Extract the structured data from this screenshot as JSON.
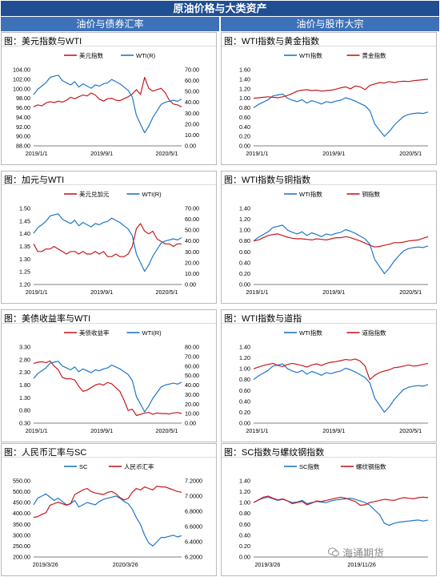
{
  "header": {
    "title": "原油价格与大类资产",
    "left_section": "油价与债券汇率",
    "right_section": "油价与股市大宗"
  },
  "watermark": "海通期货",
  "colors": {
    "blue": "#1f77c8",
    "red": "#c8191e",
    "header_dark": "#1f4e92",
    "header_light": "#3e72b8"
  },
  "chart_data": [
    {
      "id": "usd_wti",
      "type": "line",
      "title": "图：美元指数与WTI",
      "x_ticks": [
        "2019/1/1",
        "2019/9/1",
        "2020/5/1"
      ],
      "left_axis": {
        "ticks": [
          "104.00",
          "102.00",
          "100.00",
          "98.00",
          "96.00",
          "94.00",
          "92.00",
          "90.00",
          "88.00"
        ],
        "range": [
          88,
          104
        ]
      },
      "right_axis": {
        "ticks": [
          "70.00",
          "60.00",
          "50.00",
          "40.00",
          "30.00",
          "20.00",
          "10.00",
          "0.00"
        ],
        "range": [
          0,
          70
        ]
      },
      "series": [
        {
          "name": "美元指数",
          "color": "red",
          "axis": "left",
          "values": [
            96.2,
            96.6,
            96.4,
            97.0,
            97.3,
            97.1,
            97.4,
            97.2,
            97.6,
            98.2,
            97.9,
            98.3,
            98.7,
            98.5,
            99.1,
            98.7,
            97.8,
            97.4,
            97.9,
            98.0,
            97.6,
            97.5,
            97.9,
            98.3,
            98.9,
            99.8,
            98.8,
            102.4,
            100.1,
            99.5,
            99.8,
            100.1,
            99.2,
            97.6,
            96.8,
            96.6,
            96.2
          ]
        },
        {
          "name": "WTI(R)",
          "color": "blue",
          "axis": "right",
          "values": [
            47,
            52,
            55,
            58,
            63,
            64,
            65,
            60,
            58,
            56,
            59,
            54,
            57,
            55,
            53,
            56,
            55,
            57,
            58,
            61,
            59,
            57,
            54,
            51,
            45,
            28,
            20,
            12,
            18,
            26,
            32,
            38,
            40,
            41,
            42,
            41,
            43
          ]
        }
      ]
    },
    {
      "id": "wti_gold",
      "type": "line",
      "title": "图：WTI指数与黄金指数",
      "x_ticks": [
        "2019/1/1",
        "2019/9/1",
        "2020/5/1"
      ],
      "left_axis": {
        "ticks": [
          "1.60",
          "1.40",
          "1.20",
          "1.00",
          "0.80",
          "0.60",
          "0.40",
          "0.20",
          "0.00"
        ],
        "range": [
          0,
          1.6
        ]
      },
      "series": [
        {
          "name": "WTI指数",
          "color": "blue",
          "values": [
            0.8,
            0.87,
            0.92,
            0.97,
            1.05,
            1.07,
            1.09,
            1.0,
            0.96,
            0.93,
            0.97,
            0.9,
            0.95,
            0.92,
            0.88,
            0.93,
            0.91,
            0.94,
            0.96,
            1.01,
            0.98,
            0.94,
            0.89,
            0.84,
            0.74,
            0.46,
            0.33,
            0.2,
            0.3,
            0.43,
            0.53,
            0.62,
            0.66,
            0.68,
            0.69,
            0.68,
            0.71
          ]
        },
        {
          "name": "黄金指数",
          "color": "red",
          "values": [
            1.0,
            1.01,
            1.02,
            1.03,
            1.02,
            1.01,
            1.03,
            1.06,
            1.1,
            1.15,
            1.17,
            1.18,
            1.16,
            1.17,
            1.15,
            1.16,
            1.17,
            1.19,
            1.22,
            1.24,
            1.2,
            1.26,
            1.24,
            1.18,
            1.27,
            1.3,
            1.33,
            1.32,
            1.35,
            1.33,
            1.35,
            1.36,
            1.35,
            1.37,
            1.38,
            1.39,
            1.4
          ]
        }
      ]
    },
    {
      "id": "cad_wti",
      "type": "line",
      "title": "图：加元与WTI",
      "x_ticks": [
        "2019/1/1",
        "2019/9/1",
        "2020/5/1"
      ],
      "left_axis": {
        "ticks": [
          "1.50",
          "1.45",
          "1.40",
          "1.35",
          "1.30",
          "1.25",
          "1.20"
        ],
        "range": [
          1.2,
          1.5
        ]
      },
      "right_axis": {
        "ticks": [
          "70.00",
          "60.00",
          "50.00",
          "40.00",
          "30.00",
          "20.00",
          "10.00",
          "0.00"
        ],
        "range": [
          0,
          70
        ]
      },
      "series": [
        {
          "name": "美元兑加元",
          "color": "red",
          "axis": "left",
          "values": [
            1.36,
            1.33,
            1.33,
            1.34,
            1.34,
            1.35,
            1.34,
            1.33,
            1.32,
            1.33,
            1.33,
            1.32,
            1.33,
            1.32,
            1.32,
            1.33,
            1.32,
            1.33,
            1.31,
            1.31,
            1.32,
            1.31,
            1.31,
            1.32,
            1.35,
            1.42,
            1.44,
            1.41,
            1.4,
            1.41,
            1.38,
            1.37,
            1.36,
            1.36,
            1.35,
            1.36,
            1.36
          ]
        },
        {
          "name": "WTI(R)",
          "color": "blue",
          "axis": "right",
          "values": [
            47,
            52,
            55,
            58,
            63,
            64,
            65,
            60,
            58,
            56,
            59,
            54,
            57,
            55,
            53,
            56,
            55,
            57,
            58,
            61,
            59,
            57,
            54,
            51,
            45,
            28,
            20,
            12,
            18,
            26,
            32,
            38,
            40,
            41,
            42,
            41,
            43
          ]
        }
      ]
    },
    {
      "id": "wti_copper",
      "type": "line",
      "title": "图：WTI指数与铜指数",
      "x_ticks": [
        "2019/1/1",
        "2019/9/1",
        "2020/5/1"
      ],
      "left_axis": {
        "ticks": [
          "1.40",
          "1.20",
          "1.00",
          "0.80",
          "0.60",
          "0.40",
          "0.20",
          "0.00"
        ],
        "range": [
          0,
          1.4
        ]
      },
      "series": [
        {
          "name": "WTI指数",
          "color": "blue",
          "values": [
            0.8,
            0.87,
            0.92,
            0.97,
            1.05,
            1.07,
            1.09,
            1.0,
            0.96,
            0.93,
            0.97,
            0.9,
            0.95,
            0.92,
            0.88,
            0.93,
            0.91,
            0.94,
            0.96,
            1.01,
            0.98,
            0.94,
            0.89,
            0.84,
            0.74,
            0.46,
            0.33,
            0.2,
            0.3,
            0.43,
            0.53,
            0.62,
            0.66,
            0.68,
            0.69,
            0.68,
            0.71
          ]
        },
        {
          "name": "铜指数",
          "color": "red",
          "values": [
            0.8,
            0.82,
            0.86,
            0.9,
            0.92,
            0.93,
            0.9,
            0.87,
            0.85,
            0.84,
            0.84,
            0.83,
            0.82,
            0.84,
            0.83,
            0.82,
            0.84,
            0.86,
            0.86,
            0.88,
            0.86,
            0.83,
            0.8,
            0.76,
            0.72,
            0.69,
            0.7,
            0.72,
            0.74,
            0.77,
            0.77,
            0.78,
            0.8,
            0.81,
            0.82,
            0.85,
            0.88
          ]
        }
      ]
    },
    {
      "id": "ust_wti",
      "type": "line",
      "title": "图：美债收益率与WTI",
      "x_ticks": [
        "2019/1/1",
        "2019/9/1",
        "2020/5/1"
      ],
      "left_axis": {
        "ticks": [
          "3.30",
          "2.80",
          "2.30",
          "1.80",
          "1.30",
          "0.80",
          "0.30"
        ],
        "range": [
          0.3,
          3.3
        ]
      },
      "right_axis": {
        "ticks": [
          "80.00",
          "70.00",
          "60.00",
          "50.00",
          "40.00",
          "30.00",
          "20.00",
          "10.00",
          "0.00"
        ],
        "range": [
          0,
          80
        ]
      },
      "series": [
        {
          "name": "美债收益率",
          "color": "red",
          "axis": "left",
          "values": [
            2.65,
            2.7,
            2.72,
            2.68,
            2.75,
            2.55,
            2.4,
            2.1,
            2.05,
            2.05,
            2.0,
            1.75,
            1.55,
            1.6,
            1.7,
            1.8,
            1.85,
            1.8,
            1.9,
            1.85,
            1.7,
            1.55,
            1.2,
            0.8,
            0.85,
            0.6,
            0.65,
            0.7,
            0.72,
            0.65,
            0.7,
            0.68,
            0.68,
            0.66,
            0.7,
            0.72,
            0.68
          ]
        },
        {
          "name": "WTI(R)",
          "color": "blue",
          "axis": "right",
          "values": [
            47,
            52,
            55,
            58,
            63,
            64,
            65,
            60,
            58,
            56,
            59,
            54,
            57,
            55,
            53,
            56,
            55,
            57,
            58,
            61,
            59,
            57,
            54,
            51,
            45,
            28,
            20,
            12,
            18,
            26,
            32,
            38,
            40,
            41,
            42,
            41,
            43
          ]
        }
      ]
    },
    {
      "id": "wti_dow",
      "type": "line",
      "title": "图：WTI指数与道指",
      "x_ticks": [
        "2019/1/1",
        "2019/9/1",
        "2020/5/1"
      ],
      "left_axis": {
        "ticks": [
          "1.40",
          "1.20",
          "1.00",
          "0.80",
          "0.60",
          "0.40",
          "0.20",
          "0.00"
        ],
        "range": [
          0,
          1.4
        ]
      },
      "series": [
        {
          "name": "WTI指数",
          "color": "blue",
          "values": [
            0.8,
            0.87,
            0.92,
            0.97,
            1.05,
            1.07,
            1.09,
            1.0,
            0.96,
            0.93,
            0.97,
            0.9,
            0.95,
            0.92,
            0.88,
            0.93,
            0.91,
            0.94,
            0.96,
            1.01,
            0.98,
            0.94,
            0.89,
            0.84,
            0.74,
            0.46,
            0.33,
            0.2,
            0.3,
            0.43,
            0.53,
            0.62,
            0.66,
            0.68,
            0.69,
            0.68,
            0.71
          ]
        },
        {
          "name": "道指指数",
          "color": "red",
          "values": [
            1.0,
            1.03,
            1.06,
            1.08,
            1.1,
            1.06,
            1.04,
            1.08,
            1.1,
            1.08,
            1.06,
            1.03,
            1.07,
            1.09,
            1.06,
            1.1,
            1.12,
            1.13,
            1.15,
            1.17,
            1.16,
            1.18,
            1.14,
            1.05,
            0.8,
            0.88,
            0.93,
            0.96,
            0.98,
            1.02,
            1.03,
            1.05,
            1.07,
            1.05,
            1.06,
            1.08,
            1.1
          ]
        }
      ]
    },
    {
      "id": "cny_sc",
      "type": "line",
      "title": "图：人民币汇率与SC",
      "x_ticks": [
        "2019/3/26",
        "2020/3/26"
      ],
      "left_axis": {
        "ticks": [
          "550.00",
          "500.00",
          "450.00",
          "400.00",
          "350.00",
          "300.00",
          "250.00",
          "200.00"
        ],
        "range": [
          200,
          550
        ]
      },
      "right_axis": {
        "ticks": [
          "7.2000",
          "7.0000",
          "6.8000",
          "6.6000",
          "6.4000",
          "6.2000"
        ],
        "range": [
          6.2,
          7.2
        ]
      },
      "series": [
        {
          "name": "SC",
          "color": "blue",
          "axis": "left",
          "values": [
            440,
            470,
            480,
            490,
            475,
            460,
            470,
            455,
            440,
            445,
            460,
            430,
            440,
            450,
            445,
            440,
            455,
            465,
            470,
            475,
            480,
            470,
            455,
            445,
            420,
            380,
            350,
            300,
            265,
            250,
            270,
            290,
            290,
            295,
            300,
            292,
            298
          ]
        },
        {
          "name": "人民币汇率",
          "color": "red",
          "axis": "right",
          "values": [
            6.72,
            6.73,
            6.76,
            6.78,
            6.88,
            6.9,
            6.92,
            6.9,
            6.88,
            6.9,
            7.02,
            7.05,
            7.08,
            7.1,
            7.06,
            7.04,
            7.03,
            7.02,
            7.05,
            7.06,
            7.03,
            6.98,
            6.95,
            6.97,
            7.05,
            7.1,
            7.08,
            7.12,
            7.1,
            7.08,
            7.13,
            7.12,
            7.12,
            7.1,
            7.08,
            7.06,
            7.05
          ]
        }
      ]
    },
    {
      "id": "sc_rebar",
      "type": "line",
      "title": "图：SC指数与螺纹钢指数",
      "x_ticks": [
        "2019/3/26",
        "2019/11/26"
      ],
      "left_axis": {
        "ticks": [
          "1.40",
          "1.20",
          "1.00",
          "0.80",
          "0.60",
          "0.40",
          "0.20",
          "0.00"
        ],
        "range": [
          0,
          1.4
        ]
      },
      "series": [
        {
          "name": "SC指数",
          "color": "blue",
          "values": [
            1.0,
            1.05,
            1.08,
            1.1,
            1.07,
            1.04,
            1.06,
            1.03,
            1.0,
            1.01,
            1.04,
            0.98,
            1.0,
            1.02,
            1.01,
            1.0,
            1.03,
            1.05,
            1.06,
            1.07,
            1.08,
            1.06,
            1.03,
            1.0,
            0.95,
            0.86,
            0.78,
            0.62,
            0.58,
            0.62,
            0.64,
            0.65,
            0.66,
            0.67,
            0.68,
            0.66,
            0.68
          ]
        },
        {
          "name": "螺纹钢指数",
          "color": "red",
          "values": [
            1.0,
            1.05,
            1.1,
            1.12,
            1.08,
            1.05,
            1.07,
            1.03,
            0.98,
            1.0,
            1.02,
            0.96,
            0.99,
            1.03,
            1.02,
            1.04,
            1.06,
            1.08,
            1.1,
            1.08,
            1.05,
            1.02,
            0.95,
            0.96,
            1.0,
            1.02,
            1.04,
            1.06,
            1.05,
            1.04,
            1.07,
            1.09,
            1.08,
            1.07,
            1.09,
            1.1,
            1.09
          ]
        }
      ]
    }
  ]
}
